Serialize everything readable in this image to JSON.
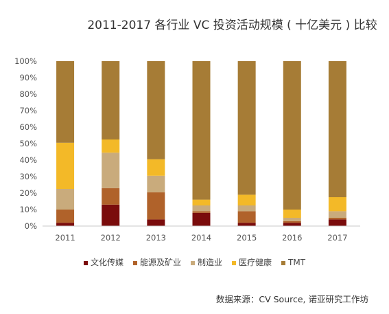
{
  "chart_data": {
    "type": "bar",
    "stacked": true,
    "title": "2011-2017 各行业 VC 投资活动规模 ( 十亿美元 ) 比较",
    "categories": [
      "2011",
      "2012",
      "2013",
      "2014",
      "2015",
      "2016",
      "2017"
    ],
    "yticks": [
      "0%",
      "10%",
      "20%",
      "30%",
      "40%",
      "50%",
      "60%",
      "70%",
      "80%",
      "90%",
      "100%"
    ],
    "ylim": [
      0,
      100
    ],
    "y_unit": "%",
    "grid": false,
    "legend_position": "bottom",
    "series": [
      {
        "name": "文化传媒",
        "color": "#7a0c0c",
        "values": [
          2,
          13,
          4,
          8,
          2,
          2,
          4
        ]
      },
      {
        "name": "能源及矿业",
        "color": "#b0622a",
        "values": [
          8,
          10,
          16.5,
          1,
          7,
          1,
          1
        ]
      },
      {
        "name": "制造业",
        "color": "#c9ab7c",
        "values": [
          12.5,
          21.5,
          10,
          3.5,
          3.5,
          2,
          4
        ]
      },
      {
        "name": "医疗健康",
        "color": "#f3b928",
        "values": [
          28,
          8,
          10,
          3.5,
          6.5,
          5,
          8.5
        ]
      },
      {
        "name": "TMT",
        "color": "#a67c36",
        "values": [
          49.5,
          47.5,
          59.5,
          84,
          81,
          90,
          82.5
        ]
      }
    ]
  },
  "source_text": "数据来源：CV Source, 诺亚研究工作坊"
}
